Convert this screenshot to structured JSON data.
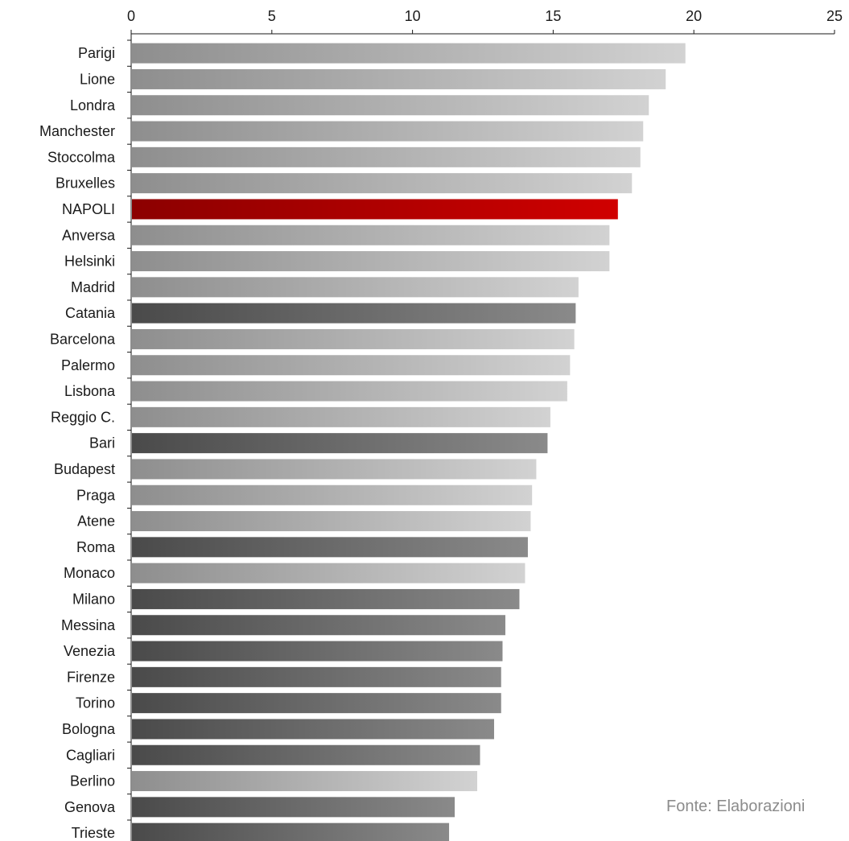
{
  "chart_data": {
    "type": "bar",
    "orientation": "horizontal",
    "categories": [
      "Parigi",
      "Lione",
      "Londra",
      "Manchester",
      "Stoccolma",
      "Bruxelles",
      "NAPOLI",
      "Anversa",
      "Helsinki",
      "Madrid",
      "Catania",
      "Barcelona",
      "Palermo",
      "Lisbona",
      "Reggio C.",
      "Bari",
      "Budapest",
      "Praga",
      "Atene",
      "Roma",
      "Monaco",
      "Milano",
      "Messina",
      "Venezia",
      "Firenze",
      "Torino",
      "Bologna",
      "Cagliari",
      "Berlino",
      "Genova",
      "Trieste"
    ],
    "values": [
      19.7,
      19.0,
      18.4,
      18.2,
      18.1,
      17.8,
      17.3,
      17.0,
      17.0,
      15.9,
      15.8,
      15.75,
      15.6,
      15.5,
      14.9,
      14.8,
      14.4,
      14.25,
      14.2,
      14.1,
      14.0,
      13.8,
      13.3,
      13.2,
      13.15,
      13.15,
      12.9,
      12.4,
      12.3,
      11.5,
      11.3
    ],
    "groups": [
      "europe",
      "europe",
      "europe",
      "europe",
      "europe",
      "europe",
      "napoli",
      "europe",
      "europe",
      "europe",
      "italy",
      "europe",
      "europe",
      "europe",
      "europe",
      "italy",
      "europe",
      "europe",
      "europe",
      "italy",
      "europe",
      "italy",
      "italy",
      "italy",
      "italy",
      "italy",
      "italy",
      "italy",
      "europe",
      "italy",
      "italy"
    ],
    "colors": {
      "europe": "#b4b4b4",
      "italy": "#6b6b6b",
      "napoli": "#b30000"
    },
    "xlim": [
      0,
      25
    ],
    "xticks": [
      0,
      5,
      10,
      15,
      20,
      25
    ],
    "axis_position": "top",
    "grid": false,
    "source": "Fonte: Elaborazioni"
  }
}
